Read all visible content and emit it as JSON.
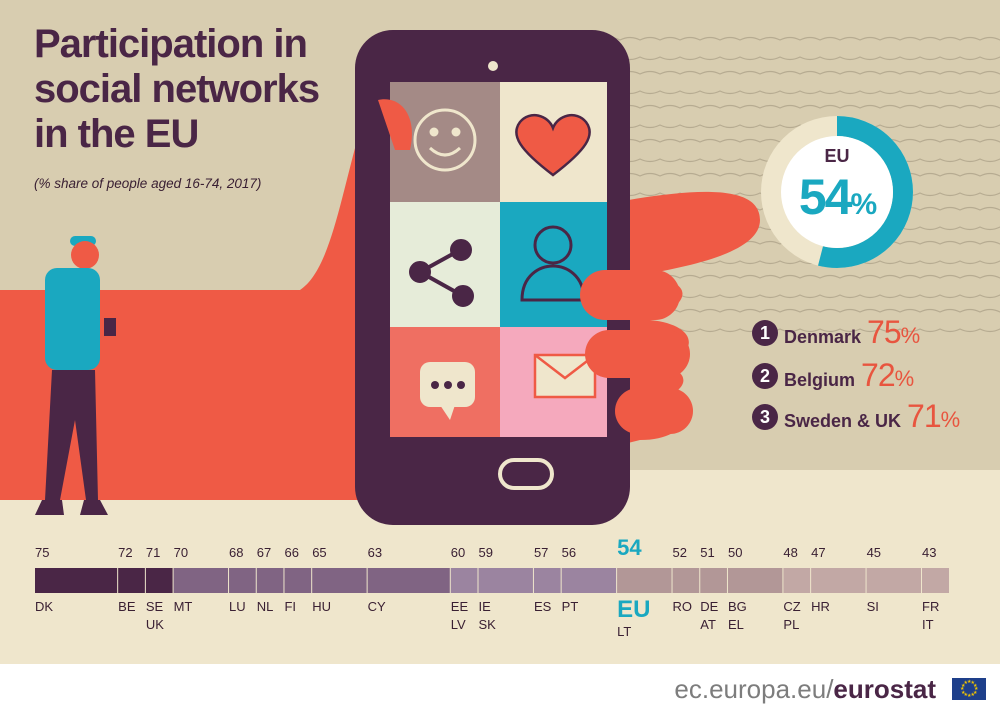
{
  "title_lines": [
    "Participation in",
    "social networks",
    "in the EU"
  ],
  "subtitle": "(% share of people aged 16-74, 2017)",
  "eu_badge": {
    "label": "EU",
    "value": "54",
    "unit": "%"
  },
  "ranking": [
    {
      "rank": "1",
      "name": "Denmark",
      "value": "75",
      "unit": "%"
    },
    {
      "rank": "2",
      "name": "Belgium",
      "value": "72",
      "unit": "%"
    },
    {
      "rank": "3",
      "name": "Sweden & UK",
      "value": "71",
      "unit": "%"
    }
  ],
  "colors": {
    "background": "#d8cdb0",
    "dark_purple": "#4a2646",
    "mid_purple": "#806483",
    "light_purple": "#9b84a0",
    "mauve": "#b29797",
    "light_mauve": "#c2a8a5",
    "coral": "#e8553f",
    "teal": "#1aa8c0",
    "cream": "#efe6cc"
  },
  "icons": [
    "smiley-icon",
    "heart-icon",
    "share-icon",
    "user-icon",
    "chat-bubble-icon",
    "envelope-icon",
    "eu-flag-icon"
  ],
  "chart_data": {
    "type": "bar",
    "title": "Participation in social networks in the EU",
    "subtitle": "(% share of people aged 16-74, 2017)",
    "ylim": [
      43,
      75
    ],
    "eu_average": {
      "label": "EU",
      "value": 54,
      "sublabel": "LT"
    },
    "groups": [
      {
        "value": 75,
        "labels": [
          "DK"
        ]
      },
      {
        "value": 72,
        "labels": [
          "BE"
        ]
      },
      {
        "value": 71,
        "labels": [
          "SE",
          "UK"
        ]
      },
      {
        "value": 70,
        "labels": [
          "MT"
        ]
      },
      {
        "value": 68,
        "labels": [
          "LU"
        ]
      },
      {
        "value": 67,
        "labels": [
          "NL"
        ]
      },
      {
        "value": 66,
        "labels": [
          "FI"
        ]
      },
      {
        "value": 65,
        "labels": [
          "HU"
        ]
      },
      {
        "value": 63,
        "labels": [
          "CY"
        ]
      },
      {
        "value": 60,
        "labels": [
          "EE",
          "LV"
        ]
      },
      {
        "value": 59,
        "labels": [
          "IE",
          "SK"
        ]
      },
      {
        "value": 57,
        "labels": [
          "ES"
        ]
      },
      {
        "value": 56,
        "labels": [
          "PT"
        ]
      },
      {
        "value": 54,
        "labels": [
          "EU",
          "LT"
        ]
      },
      {
        "value": 52,
        "labels": [
          "RO"
        ]
      },
      {
        "value": 51,
        "labels": [
          "DE",
          "AT"
        ]
      },
      {
        "value": 50,
        "labels": [
          "BG",
          "EL"
        ]
      },
      {
        "value": 48,
        "labels": [
          "CZ",
          "PL"
        ]
      },
      {
        "value": 47,
        "labels": [
          "HR"
        ]
      },
      {
        "value": 45,
        "labels": [
          "SI"
        ]
      },
      {
        "value": 43,
        "labels": [
          "FR",
          "IT"
        ]
      }
    ]
  },
  "footer": {
    "domain": "ec.europa.eu/",
    "brand": "eurostat"
  }
}
